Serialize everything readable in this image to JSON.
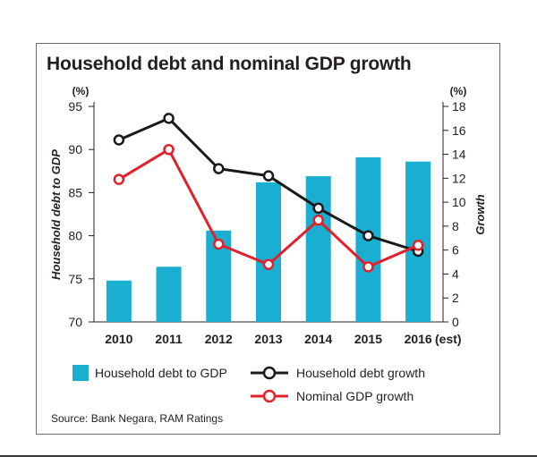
{
  "chart_data": {
    "type": "bar",
    "title": "Household debt and nominal GDP growth",
    "categories": [
      "2010",
      "2011",
      "2012",
      "2013",
      "2014",
      "2015",
      "2016"
    ],
    "x_suffix": "(est)",
    "left_axis": {
      "label": "Household debt to GDP",
      "unit": "(%)",
      "range": [
        70,
        95
      ],
      "ticks": [
        70,
        75,
        80,
        85,
        90,
        95
      ]
    },
    "right_axis": {
      "label": "Growth",
      "unit": "(%)",
      "range": [
        0,
        18
      ],
      "ticks": [
        0,
        2,
        4,
        6,
        8,
        10,
        12,
        14,
        16,
        18
      ]
    },
    "series": [
      {
        "name": "Household debt to GDP",
        "kind": "bar",
        "axis": "left",
        "color": "#1aaed0",
        "values": [
          74.8,
          76.4,
          80.6,
          86.2,
          86.9,
          89.1,
          88.6
        ]
      },
      {
        "name": "Household debt growth",
        "kind": "line",
        "axis": "right",
        "color": "#1a1a1a",
        "values": [
          15.2,
          17.0,
          12.8,
          12.2,
          9.5,
          7.2,
          5.9
        ]
      },
      {
        "name": "Nominal GDP growth",
        "kind": "line",
        "axis": "right",
        "color": "#e0202a",
        "values": [
          11.9,
          14.4,
          6.5,
          4.8,
          8.5,
          4.6,
          6.4
        ]
      }
    ],
    "grid": false,
    "legend_placement": "bottom"
  },
  "source": "Source: Bank Negara, RAM Ratings"
}
